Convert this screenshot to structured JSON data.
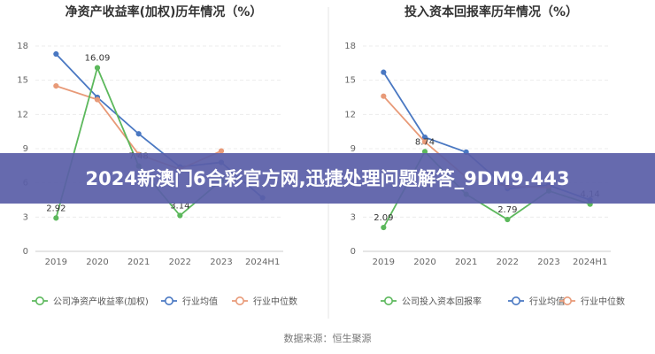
{
  "banner": {
    "text": "2024新澳门6合彩官方网,迅捷处理问题解答_9DM9.443"
  },
  "source": {
    "text": "数据来源：恒生聚源"
  },
  "chart_data": [
    {
      "type": "line",
      "title": "净资产收益率(加权)历年情况（%）",
      "categories": [
        "2019",
        "2020",
        "2021",
        "2022",
        "2023",
        "2024H1"
      ],
      "yticks": [
        "0",
        "3",
        "6",
        "9",
        "12",
        "15",
        "18"
      ],
      "ylim": [
        0,
        18
      ],
      "grid": true,
      "legend_position": "bottom",
      "series": [
        {
          "name": "公司净资产收益率(加权)",
          "color": "#5cb85c",
          "values": [
            2.92,
            16.09,
            7.48,
            3.14,
            6.2,
            null
          ],
          "labels": [
            "2.92",
            "16.09",
            "7.48",
            "3.14",
            "",
            ""
          ]
        },
        {
          "name": "行业均值",
          "color": "#4a78c2",
          "values": [
            17.3,
            13.5,
            10.3,
            7.4,
            7.8,
            4.7
          ],
          "labels": []
        },
        {
          "name": "行业中位数",
          "color": "#e89a78",
          "values": [
            14.5,
            13.3,
            8.5,
            7.2,
            8.8,
            null
          ],
          "labels": []
        }
      ]
    },
    {
      "type": "line",
      "title": "投入资本回报率历年情况（%）",
      "categories": [
        "2019",
        "2020",
        "2021",
        "2022",
        "2023",
        "2024H1"
      ],
      "yticks": [
        "0",
        "3",
        "6",
        "9",
        "12",
        "15",
        "18"
      ],
      "ylim": [
        0,
        18
      ],
      "grid": true,
      "legend_position": "bottom",
      "series": [
        {
          "name": "公司投入资本回报率",
          "color": "#5cb85c",
          "values": [
            2.09,
            8.74,
            5.0,
            2.79,
            5.3,
            4.14
          ],
          "labels": [
            "2.09",
            "8.74",
            "",
            "2.79",
            "",
            "4.14"
          ]
        },
        {
          "name": "行业均值",
          "color": "#4a78c2",
          "values": [
            15.7,
            10.0,
            8.7,
            5.5,
            5.8,
            4.5
          ],
          "labels": []
        },
        {
          "name": "行业中位数",
          "color": "#e89a78",
          "values": [
            13.6,
            9.6,
            6.5,
            5.7,
            5.6,
            null
          ],
          "labels": []
        }
      ]
    }
  ]
}
